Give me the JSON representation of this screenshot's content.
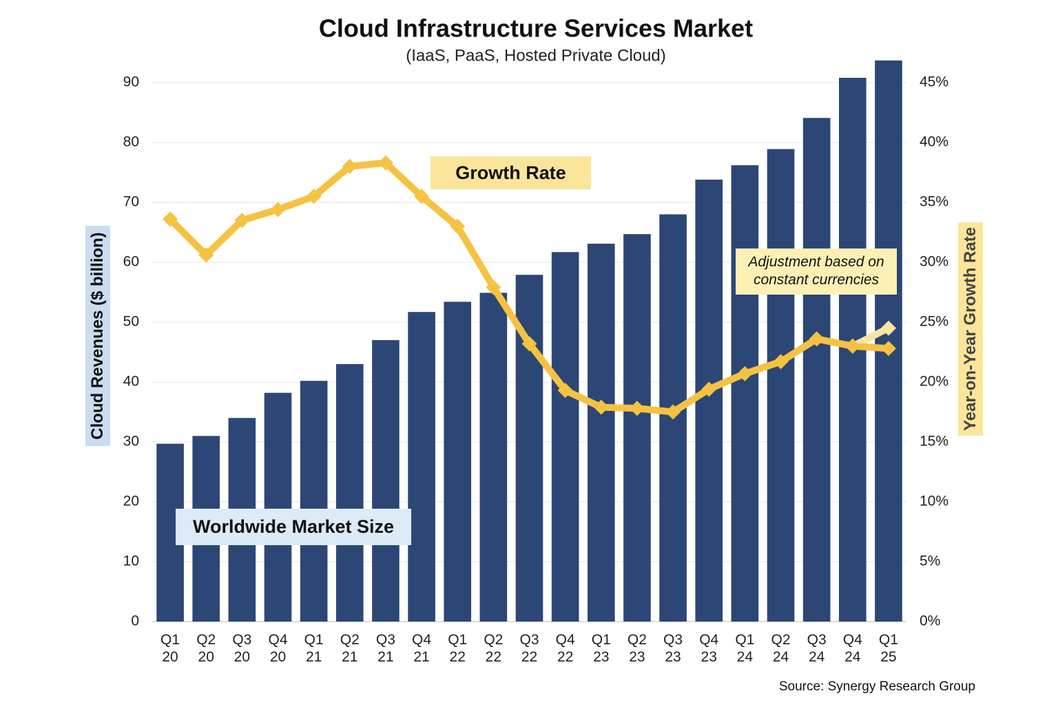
{
  "chart_data": {
    "type": "bar_line",
    "title": "Cloud Infrastructure Services Market",
    "subtitle": "(IaaS, PaaS, Hosted Private Cloud)",
    "ylabel": "Cloud Revenues ($ billion)",
    "y2label": "Year-on-Year Growth Rate",
    "source": "Source: Synergy Research Group",
    "categories": [
      "Q1 20",
      "Q2 20",
      "Q3 20",
      "Q4 20",
      "Q1 21",
      "Q2 21",
      "Q3 21",
      "Q4 21",
      "Q1 22",
      "Q2 22",
      "Q3 22",
      "Q4 22",
      "Q1 23",
      "Q2 23",
      "Q3 23",
      "Q4 23",
      "Q1 24",
      "Q2 24",
      "Q3 24",
      "Q4 24",
      "Q1 25"
    ],
    "series": [
      {
        "name": "Worldwide Market Size",
        "type": "bar",
        "color": "#2c4775",
        "values": [
          29.7,
          31.0,
          34.0,
          38.2,
          40.2,
          43.0,
          47.0,
          51.7,
          53.4,
          54.9,
          57.9,
          61.7,
          63.1,
          64.7,
          68.0,
          73.8,
          76.2,
          78.9,
          84.1,
          90.8,
          93.7
        ]
      },
      {
        "name": "Growth Rate",
        "type": "line",
        "axis": "y2",
        "color": "#f5c242",
        "values": [
          33.6,
          30.6,
          33.5,
          34.4,
          35.5,
          38.0,
          38.3,
          35.5,
          33.0,
          27.9,
          23.2,
          19.3,
          17.9,
          17.8,
          17.5,
          19.4,
          20.7,
          21.7,
          23.6,
          23.0,
          22.8
        ]
      },
      {
        "name": "Adjustment based on constant currencies",
        "type": "line",
        "axis": "y2",
        "color": "#f9e4a0",
        "values": [
          null,
          null,
          null,
          null,
          null,
          null,
          null,
          null,
          null,
          null,
          null,
          null,
          null,
          null,
          null,
          null,
          null,
          null,
          null,
          23.0,
          24.5
        ]
      }
    ],
    "ylim": [
      0,
      95
    ],
    "yticks": [
      0,
      10,
      20,
      30,
      40,
      50,
      60,
      70,
      80,
      90
    ],
    "y2lim": [
      0,
      47.5
    ],
    "y2ticks": [
      {
        "value": 0,
        "label": "0%"
      },
      {
        "value": 5,
        "label": "5%"
      },
      {
        "value": 10,
        "label": "10%"
      },
      {
        "value": 15,
        "label": "15%"
      },
      {
        "value": 20,
        "label": "20%"
      },
      {
        "value": 25,
        "label": "25%"
      },
      {
        "value": 30,
        "label": "30%"
      },
      {
        "value": 35,
        "label": "35%"
      },
      {
        "value": 40,
        "label": "40%"
      },
      {
        "value": 45,
        "label": "45%"
      }
    ],
    "grid": true
  }
}
